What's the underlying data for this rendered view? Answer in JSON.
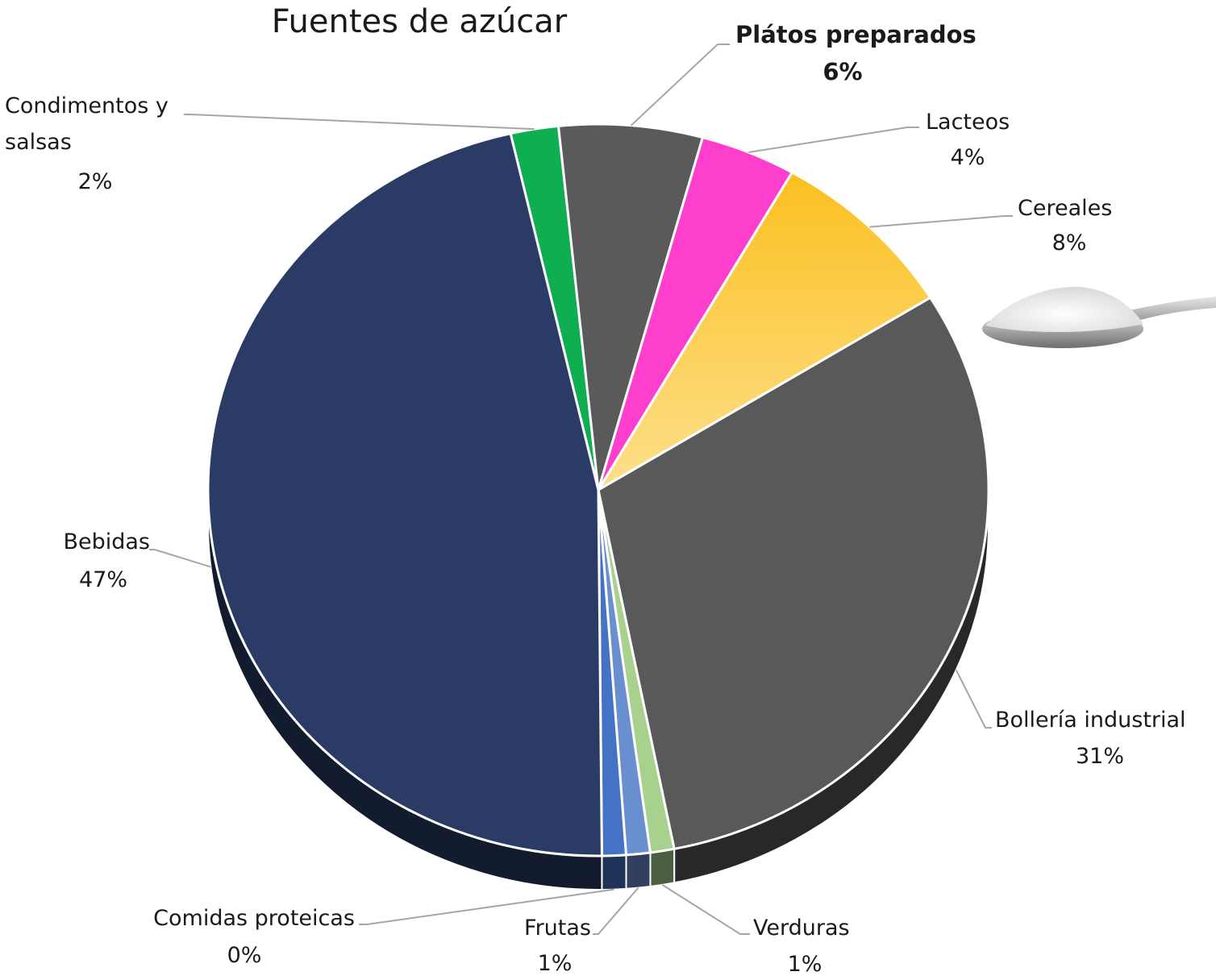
{
  "chart_data": {
    "type": "pie",
    "title": "Fuentes de azúcar",
    "slices": [
      {
        "name": "Condimentos y salsas",
        "label_lines": [
          "Condimentos y",
          "salsas"
        ],
        "value": 2,
        "value_label": "2%",
        "color": "#0fae50"
      },
      {
        "name": "Plátos preparados",
        "label_lines": [
          "Plátos preparados"
        ],
        "value": 6,
        "value_label": "6%",
        "color": "#5a5a5a"
      },
      {
        "name": "Lacteos",
        "label_lines": [
          "Lacteos"
        ],
        "value": 4,
        "value_label": "4%",
        "color": "#fe3fce"
      },
      {
        "name": "Cereales",
        "label_lines": [
          "Cereales"
        ],
        "value": 8,
        "value_label": "8%",
        "color": "#fcc12e"
      },
      {
        "name": "Bollería industrial",
        "label_lines": [
          "Bollería industrial"
        ],
        "value": 31,
        "value_label": "31%",
        "color": "#595959"
      },
      {
        "name": "Verduras",
        "label_lines": [
          "Verduras"
        ],
        "value": 1,
        "value_label": "1%",
        "color": "#a9d18e"
      },
      {
        "name": "Frutas",
        "label_lines": [
          "Frutas"
        ],
        "value": 1,
        "value_label": "1%",
        "color": "#6a8fd0"
      },
      {
        "name": "Comidas proteicas",
        "label_lines": [
          "Comidas proteicas"
        ],
        "value": 0,
        "value_label": "0%",
        "color": "#4472c4"
      },
      {
        "name": "Bebidas",
        "label_lines": [
          "Bebidas"
        ],
        "value": 47,
        "value_label": "47%",
        "color": "#2a3c66"
      }
    ],
    "legend": "none",
    "style": "3d-pie-with-leader-labels"
  },
  "decoration": {
    "icon": "sugar-spoon-icon"
  }
}
